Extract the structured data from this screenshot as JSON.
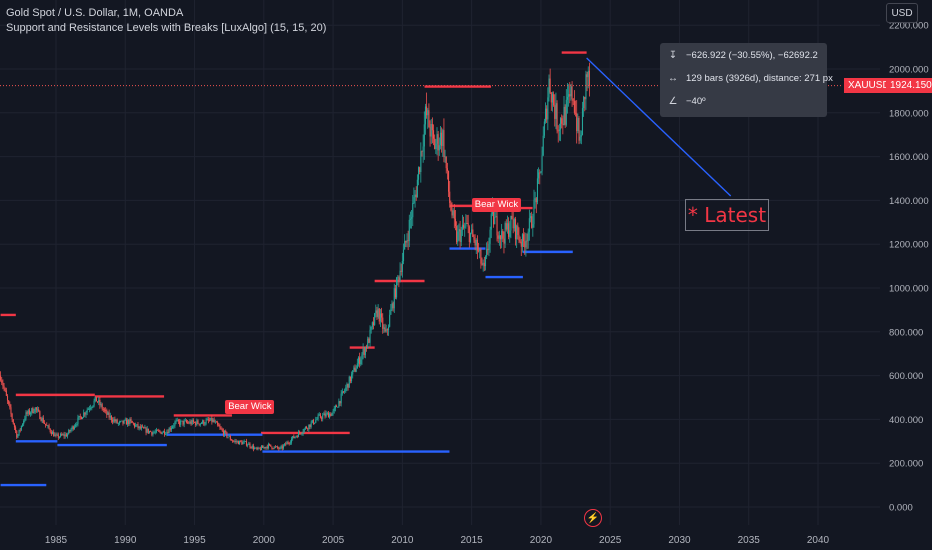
{
  "header": {
    "symbol_line": "Gold Spot / U.S. Dollar, 1M, OANDA",
    "indicator_line": "Support and Resistance Levels with Breaks [LuxAlgo] (15, 15, 20)"
  },
  "currency_button": "USD",
  "price_badge": {
    "symbol": "XAUUSD",
    "price": "1924.150"
  },
  "measure_tooltip": {
    "price_change": "−626.922 (−30.55%), −62692.2",
    "bars_distance": "129 bars (3926d), distance: 271 px",
    "angle": "−40º"
  },
  "annotation_box": "* Latest",
  "bear_wick_labels": [
    "Bear Wick",
    "Bear Wick"
  ],
  "colors": {
    "background": "#131722",
    "up": "#26a69a",
    "down": "#ef5350",
    "resistance": "#f23645",
    "support": "#2962ff",
    "trendline": "#2962ff",
    "grid": "#1f2330"
  },
  "chart_data": {
    "type": "candlestick",
    "x_axis": {
      "min": 1981.0,
      "max": 2043.0,
      "ticks": [
        "1985",
        "1990",
        "1995",
        "2000",
        "2005",
        "2010",
        "2015",
        "2020",
        "2025",
        "2030",
        "2035",
        "2040"
      ]
    },
    "y_axis": {
      "min": -100,
      "max": 2250,
      "ticks": [
        "0.000",
        "200.000",
        "400.000",
        "600.000",
        "800.000",
        "1000.000",
        "1200.000",
        "1400.000",
        "1600.000",
        "1800.000",
        "2000.000",
        "2200.000"
      ]
    },
    "last_price": 1924.15,
    "price_path": [
      [
        1981.0,
        600
      ],
      [
        1981.5,
        480
      ],
      [
        1982.2,
        320
      ],
      [
        1982.8,
        420
      ],
      [
        1983.5,
        450
      ],
      [
        1984.3,
        370
      ],
      [
        1985.0,
        320
      ],
      [
        1985.8,
        330
      ],
      [
        1986.5,
        390
      ],
      [
        1987.3,
        450
      ],
      [
        1987.9,
        490
      ],
      [
        1988.7,
        420
      ],
      [
        1989.5,
        380
      ],
      [
        1990.3,
        390
      ],
      [
        1991.0,
        360
      ],
      [
        1992.0,
        340
      ],
      [
        1993.0,
        345
      ],
      [
        1993.6,
        385
      ],
      [
        1994.5,
        385
      ],
      [
        1995.5,
        385
      ],
      [
        1996.3,
        395
      ],
      [
        1997.0,
        345
      ],
      [
        1997.8,
        300
      ],
      [
        1998.8,
        290
      ],
      [
        1999.5,
        260
      ],
      [
        2000.3,
        280
      ],
      [
        2001.2,
        265
      ],
      [
        2002.0,
        310
      ],
      [
        2003.0,
        360
      ],
      [
        2004.0,
        410
      ],
      [
        2005.0,
        430
      ],
      [
        2005.9,
        540
      ],
      [
        2006.5,
        620
      ],
      [
        2007.5,
        750
      ],
      [
        2008.2,
        900
      ],
      [
        2008.8,
        780
      ],
      [
        2009.5,
        990
      ],
      [
        2010.3,
        1220
      ],
      [
        2011.0,
        1450
      ],
      [
        2011.7,
        1800
      ],
      [
        2012.3,
        1650
      ],
      [
        2012.9,
        1700
      ],
      [
        2013.4,
        1400
      ],
      [
        2013.9,
        1230
      ],
      [
        2014.6,
        1280
      ],
      [
        2015.3,
        1200
      ],
      [
        2015.9,
        1070
      ],
      [
        2016.5,
        1330
      ],
      [
        2017.2,
        1230
      ],
      [
        2017.9,
        1300
      ],
      [
        2018.7,
        1200
      ],
      [
        2019.3,
        1300
      ],
      [
        2019.9,
        1500
      ],
      [
        2020.6,
        1950
      ],
      [
        2021.2,
        1750
      ],
      [
        2021.8,
        1800
      ],
      [
        2022.3,
        1900
      ],
      [
        2022.8,
        1650
      ],
      [
        2023.3,
        1980
      ],
      [
        2023.5,
        1924
      ]
    ],
    "resistance_levels": [
      {
        "x0": 1981.0,
        "x1": 1982.1,
        "y": 877
      },
      {
        "x0": 1982.1,
        "x1": 1987.8,
        "y": 512
      },
      {
        "x0": 1987.8,
        "x1": 1992.8,
        "y": 505
      },
      {
        "x0": 1993.5,
        "x1": 1997.7,
        "y": 418
      },
      {
        "x0": 1999.8,
        "x1": 2006.2,
        "y": 338
      },
      {
        "x0": 2006.2,
        "x1": 2008.0,
        "y": 728
      },
      {
        "x0": 2008.0,
        "x1": 2011.6,
        "y": 1032
      },
      {
        "x0": 2011.6,
        "x1": 2016.4,
        "y": 1920
      },
      {
        "x0": 2013.4,
        "x1": 2017.0,
        "y": 1375
      },
      {
        "x0": 2016.5,
        "x1": 2019.4,
        "y": 1365
      },
      {
        "x0": 2021.5,
        "x1": 2023.3,
        "y": 2075
      }
    ],
    "support_levels": [
      {
        "x0": 1981.0,
        "x1": 1984.3,
        "y": 100
      },
      {
        "x0": 1982.1,
        "x1": 1985.1,
        "y": 300
      },
      {
        "x0": 1985.1,
        "x1": 1993.0,
        "y": 283
      },
      {
        "x0": 1993.0,
        "x1": 1999.9,
        "y": 330
      },
      {
        "x0": 1999.9,
        "x1": 2013.4,
        "y": 253
      },
      {
        "x0": 2013.4,
        "x1": 2016.0,
        "y": 1180
      },
      {
        "x0": 2016.0,
        "x1": 2018.7,
        "y": 1050
      },
      {
        "x0": 2018.7,
        "x1": 2022.3,
        "y": 1165
      }
    ],
    "trendline": {
      "x0": 2023.3,
      "y0": 2050,
      "x1": 2033.7,
      "y1": 1420
    },
    "bear_wick_points": [
      {
        "x": 1998.8,
        "y": 415
      },
      {
        "x": 2016.6,
        "y": 1340
      }
    ]
  }
}
